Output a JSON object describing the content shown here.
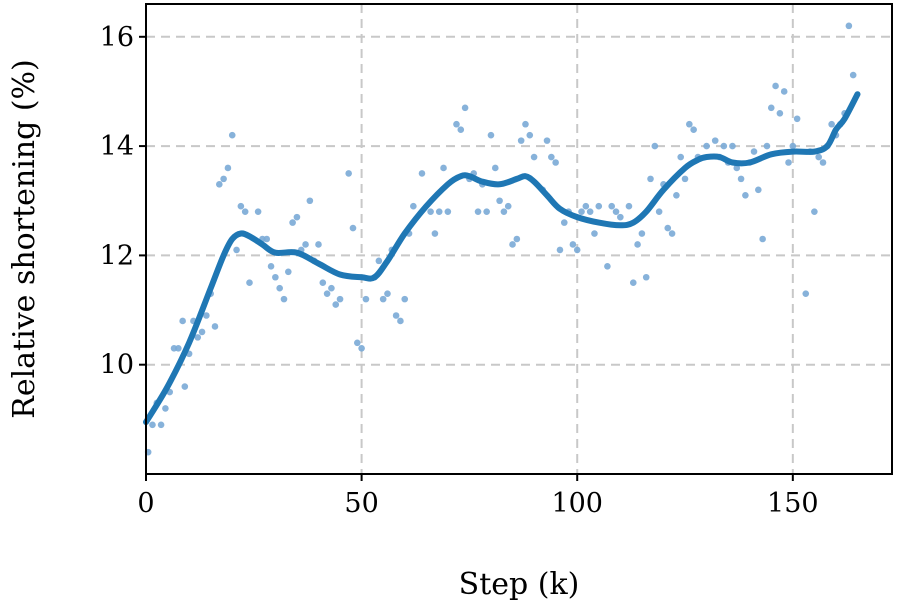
{
  "chart_data": {
    "type": "scatter",
    "title": "",
    "xlabel": "Step (k)",
    "ylabel": "Relative shortening (%)",
    "xlim": [
      0,
      173
    ],
    "ylim": [
      8.0,
      16.6
    ],
    "x_ticks": [
      0,
      50,
      100,
      150
    ],
    "y_ticks": [
      10,
      12,
      14,
      16
    ],
    "grid": true,
    "legend": "none",
    "colors": {
      "scatter": "#7aaad6",
      "line": "#1f77b4"
    },
    "series": [
      {
        "kind": "scatter",
        "points": [
          [
            0.5,
            8.4
          ],
          [
            1.5,
            8.9
          ],
          [
            2.5,
            9.3
          ],
          [
            3.5,
            8.9
          ],
          [
            4.5,
            9.2
          ],
          [
            5.5,
            9.5
          ],
          [
            6.5,
            10.3
          ],
          [
            7.5,
            10.3
          ],
          [
            8.5,
            10.8
          ],
          [
            9,
            9.6
          ],
          [
            10,
            10.2
          ],
          [
            11,
            10.8
          ],
          [
            12,
            10.5
          ],
          [
            13,
            10.6
          ],
          [
            14,
            10.9
          ],
          [
            15,
            11.3
          ],
          [
            16,
            10.7
          ],
          [
            17,
            13.3
          ],
          [
            18,
            13.4
          ],
          [
            19,
            13.6
          ],
          [
            20,
            14.2
          ],
          [
            21,
            12.1
          ],
          [
            22,
            12.9
          ],
          [
            23,
            12.8
          ],
          [
            24,
            11.5
          ],
          [
            26,
            12.8
          ],
          [
            27,
            12.3
          ],
          [
            28,
            12.3
          ],
          [
            29,
            11.8
          ],
          [
            30,
            11.6
          ],
          [
            31,
            11.4
          ],
          [
            32,
            11.2
          ],
          [
            33,
            11.7
          ],
          [
            34,
            12.6
          ],
          [
            35,
            12.7
          ],
          [
            36,
            12.1
          ],
          [
            37,
            12.2
          ],
          [
            38,
            13.0
          ],
          [
            39,
            11.9
          ],
          [
            40,
            12.2
          ],
          [
            41,
            11.5
          ],
          [
            42,
            11.3
          ],
          [
            43,
            11.4
          ],
          [
            44,
            11.1
          ],
          [
            45,
            11.2
          ],
          [
            47,
            13.5
          ],
          [
            48,
            12.5
          ],
          [
            49,
            10.4
          ],
          [
            50,
            10.3
          ],
          [
            51,
            11.2
          ],
          [
            53,
            11.6
          ],
          [
            54,
            11.9
          ],
          [
            55,
            11.2
          ],
          [
            56,
            11.3
          ],
          [
            57,
            12.1
          ],
          [
            58,
            10.9
          ],
          [
            59,
            10.8
          ],
          [
            60,
            11.2
          ],
          [
            61,
            12.4
          ],
          [
            62,
            12.9
          ],
          [
            64,
            13.5
          ],
          [
            66,
            12.8
          ],
          [
            67,
            12.4
          ],
          [
            68,
            12.8
          ],
          [
            69,
            13.6
          ],
          [
            70,
            12.8
          ],
          [
            72,
            14.4
          ],
          [
            73,
            14.3
          ],
          [
            74,
            14.7
          ],
          [
            75,
            13.4
          ],
          [
            76,
            13.5
          ],
          [
            77,
            12.8
          ],
          [
            78,
            13.3
          ],
          [
            79,
            12.8
          ],
          [
            80,
            14.2
          ],
          [
            81,
            13.6
          ],
          [
            82,
            13.0
          ],
          [
            83,
            12.8
          ],
          [
            84,
            12.9
          ],
          [
            85,
            12.2
          ],
          [
            86,
            12.3
          ],
          [
            87,
            14.1
          ],
          [
            88,
            14.4
          ],
          [
            89,
            14.2
          ],
          [
            90,
            13.8
          ],
          [
            92,
            13.2
          ],
          [
            93,
            14.1
          ],
          [
            94,
            13.8
          ],
          [
            95,
            13.7
          ],
          [
            96,
            12.1
          ],
          [
            97,
            12.6
          ],
          [
            98,
            12.8
          ],
          [
            99,
            12.2
          ],
          [
            100,
            12.1
          ],
          [
            101,
            12.8
          ],
          [
            102,
            12.9
          ],
          [
            103,
            12.8
          ],
          [
            104,
            12.4
          ],
          [
            105,
            12.9
          ],
          [
            107,
            11.8
          ],
          [
            108,
            12.9
          ],
          [
            109,
            12.8
          ],
          [
            110,
            12.7
          ],
          [
            112,
            12.9
          ],
          [
            113,
            11.5
          ],
          [
            114,
            12.2
          ],
          [
            115,
            12.4
          ],
          [
            116,
            11.6
          ],
          [
            117,
            13.4
          ],
          [
            118,
            14.0
          ],
          [
            119,
            12.8
          ],
          [
            120,
            13.3
          ],
          [
            121,
            12.5
          ],
          [
            122,
            12.4
          ],
          [
            123,
            13.1
          ],
          [
            124,
            13.8
          ],
          [
            125,
            13.4
          ],
          [
            126,
            14.4
          ],
          [
            127,
            14.3
          ],
          [
            128,
            13.8
          ],
          [
            130,
            14.0
          ],
          [
            132,
            14.1
          ],
          [
            133,
            13.8
          ],
          [
            134,
            14.0
          ],
          [
            135,
            13.7
          ],
          [
            136,
            14.0
          ],
          [
            137,
            13.6
          ],
          [
            138,
            13.4
          ],
          [
            139,
            13.1
          ],
          [
            140,
            13.7
          ],
          [
            141,
            13.9
          ],
          [
            142,
            13.2
          ],
          [
            143,
            12.3
          ],
          [
            144,
            14.0
          ],
          [
            145,
            14.7
          ],
          [
            146,
            15.1
          ],
          [
            147,
            14.6
          ],
          [
            148,
            15.0
          ],
          [
            149,
            13.7
          ],
          [
            150,
            14.0
          ],
          [
            151,
            14.5
          ],
          [
            153,
            11.3
          ],
          [
            154,
            13.9
          ],
          [
            155,
            12.8
          ],
          [
            156,
            13.8
          ],
          [
            157,
            13.7
          ],
          [
            158,
            14.0
          ],
          [
            159,
            14.4
          ],
          [
            160,
            14.2
          ],
          [
            161,
            14.4
          ],
          [
            162,
            14.6
          ],
          [
            163,
            16.2
          ],
          [
            164,
            15.3
          ]
        ]
      },
      {
        "kind": "line",
        "x": [
          0,
          5,
          10,
          15,
          18,
          20,
          22,
          24,
          27,
          30,
          35,
          40,
          45,
          50,
          53,
          56,
          60,
          65,
          70,
          73,
          75,
          78,
          82,
          86,
          88,
          90,
          93,
          96,
          100,
          105,
          110,
          113,
          116,
          120,
          125,
          128,
          130,
          133,
          136,
          140,
          145,
          150,
          155,
          158,
          160,
          162,
          165
        ],
        "y": [
          8.95,
          9.6,
          10.4,
          11.4,
          12.0,
          12.3,
          12.4,
          12.35,
          12.2,
          12.05,
          12.05,
          11.85,
          11.65,
          11.6,
          11.6,
          11.9,
          12.4,
          12.9,
          13.3,
          13.45,
          13.45,
          13.35,
          13.3,
          13.4,
          13.45,
          13.35,
          13.1,
          12.85,
          12.7,
          12.6,
          12.55,
          12.6,
          12.8,
          13.2,
          13.6,
          13.75,
          13.8,
          13.8,
          13.7,
          13.7,
          13.85,
          13.9,
          13.9,
          14.0,
          14.3,
          14.5,
          14.95
        ]
      }
    ]
  }
}
